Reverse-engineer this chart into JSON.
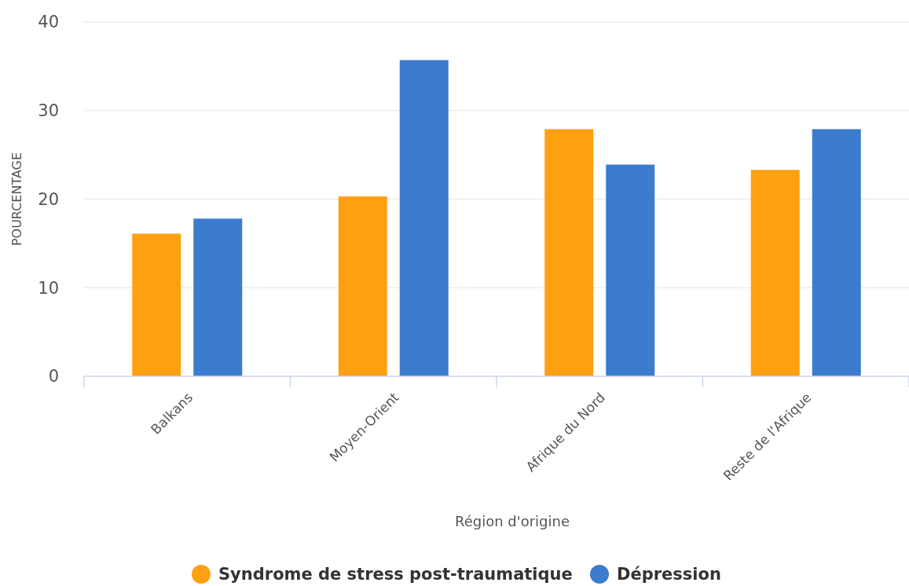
{
  "chart_data": {
    "type": "bar",
    "xlabel": "Région d'origine",
    "ylabel": "POURCENTAGE",
    "categories": [
      "Balkans",
      "Moyen-Orient",
      "Afrique du Nord",
      "Reste de l'Afrique"
    ],
    "series": [
      {
        "name": "Syndrome de stress post-traumatique",
        "color": "#ff9f12",
        "values": [
          16.1,
          20.3,
          27.9,
          23.3
        ]
      },
      {
        "name": "Dépression",
        "color": "#3c7cce",
        "values": [
          17.8,
          35.7,
          23.9,
          27.9
        ]
      }
    ],
    "ylim": [
      0,
      40
    ],
    "yticks": [
      0,
      10,
      20,
      30,
      40
    ],
    "grid": "y",
    "legend": "bottom"
  }
}
